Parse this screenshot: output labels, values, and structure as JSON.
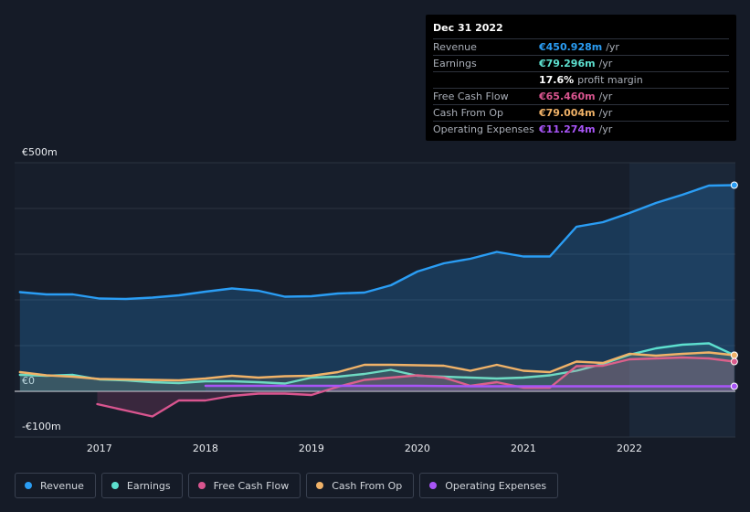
{
  "tooltip": {
    "date": "Dec 31 2022",
    "rows": [
      {
        "label": "Revenue",
        "value": "€450.928m",
        "unit": "/yr",
        "color": "#2a9df4"
      },
      {
        "label": "Earnings",
        "value": "€79.296m",
        "unit": "/yr",
        "color": "#5de0cf"
      },
      {
        "label": "",
        "value": "17.6%",
        "unit": "profit margin",
        "color": "#ffffff"
      },
      {
        "label": "Free Cash Flow",
        "value": "€65.460m",
        "unit": "/yr",
        "color": "#d9558f"
      },
      {
        "label": "Cash From Op",
        "value": "€79.004m",
        "unit": "/yr",
        "color": "#f0b268"
      },
      {
        "label": "Operating Expenses",
        "value": "€11.274m",
        "unit": "/yr",
        "color": "#a855f7"
      }
    ]
  },
  "chart_data": {
    "type": "area",
    "title": "",
    "xlabel": "",
    "ylabel": "",
    "ylim": [
      -100,
      500
    ],
    "y_ticks": [
      {
        "value": 500,
        "label": "€500m"
      },
      {
        "value": 0,
        "label": "€0"
      },
      {
        "value": -100,
        "label": "-€100m"
      }
    ],
    "x_ticks": [
      {
        "value": 2017,
        "label": "2017"
      },
      {
        "value": 2018,
        "label": "2018"
      },
      {
        "value": 2019,
        "label": "2019"
      },
      {
        "value": 2020,
        "label": "2020"
      },
      {
        "value": 2021,
        "label": "2021"
      },
      {
        "value": 2022,
        "label": "2022"
      }
    ],
    "xlim": [
      2016.2,
      2023.0
    ],
    "highlight_from": 2022.0,
    "series": [
      {
        "name": "Revenue",
        "color": "#2a9df4",
        "points": [
          [
            2016.25,
            217
          ],
          [
            2016.5,
            212
          ],
          [
            2016.75,
            212
          ],
          [
            2017.0,
            203
          ],
          [
            2017.25,
            202
          ],
          [
            2017.5,
            205
          ],
          [
            2017.75,
            210
          ],
          [
            2018.0,
            218
          ],
          [
            2018.25,
            225
          ],
          [
            2018.5,
            220
          ],
          [
            2018.75,
            207
          ],
          [
            2019.0,
            208
          ],
          [
            2019.25,
            214
          ],
          [
            2019.5,
            216
          ],
          [
            2019.75,
            232
          ],
          [
            2020.0,
            262
          ],
          [
            2020.25,
            280
          ],
          [
            2020.5,
            290
          ],
          [
            2020.75,
            305
          ],
          [
            2021.0,
            295
          ],
          [
            2021.25,
            295
          ],
          [
            2021.5,
            360
          ],
          [
            2021.75,
            370
          ],
          [
            2022.0,
            390
          ],
          [
            2022.25,
            412
          ],
          [
            2022.5,
            430
          ],
          [
            2022.75,
            450
          ],
          [
            2022.99,
            451
          ]
        ]
      },
      {
        "name": "Earnings",
        "color": "#5de0cf",
        "points": [
          [
            2016.25,
            36
          ],
          [
            2016.5,
            34
          ],
          [
            2016.75,
            36
          ],
          [
            2017.0,
            26
          ],
          [
            2017.25,
            24
          ],
          [
            2017.5,
            20
          ],
          [
            2017.75,
            18
          ],
          [
            2018.0,
            22
          ],
          [
            2018.25,
            22
          ],
          [
            2018.5,
            20
          ],
          [
            2018.75,
            17
          ],
          [
            2019.0,
            30
          ],
          [
            2019.25,
            32
          ],
          [
            2019.5,
            38
          ],
          [
            2019.75,
            47
          ],
          [
            2020.0,
            34
          ],
          [
            2020.25,
            32
          ],
          [
            2020.5,
            30
          ],
          [
            2020.75,
            28
          ],
          [
            2021.0,
            30
          ],
          [
            2021.25,
            35
          ],
          [
            2021.5,
            45
          ],
          [
            2021.75,
            60
          ],
          [
            2022.0,
            80
          ],
          [
            2022.25,
            94
          ],
          [
            2022.5,
            102
          ],
          [
            2022.75,
            105
          ],
          [
            2022.99,
            79
          ]
        ]
      },
      {
        "name": "Free Cash Flow",
        "color": "#d9558f",
        "points": [
          [
            2016.98,
            -28
          ],
          [
            2017.25,
            -42
          ],
          [
            2017.5,
            -55
          ],
          [
            2017.75,
            -20
          ],
          [
            2018.0,
            -20
          ],
          [
            2018.25,
            -10
          ],
          [
            2018.5,
            -5
          ],
          [
            2018.75,
            -5
          ],
          [
            2019.0,
            -8
          ],
          [
            2019.25,
            10
          ],
          [
            2019.5,
            25
          ],
          [
            2019.75,
            30
          ],
          [
            2020.0,
            35
          ],
          [
            2020.25,
            30
          ],
          [
            2020.5,
            12
          ],
          [
            2020.75,
            20
          ],
          [
            2021.0,
            8
          ],
          [
            2021.25,
            8
          ],
          [
            2021.5,
            55
          ],
          [
            2021.75,
            56
          ],
          [
            2022.0,
            70
          ],
          [
            2022.25,
            72
          ],
          [
            2022.5,
            74
          ],
          [
            2022.75,
            72
          ],
          [
            2022.99,
            65
          ]
        ]
      },
      {
        "name": "Cash From Op",
        "color": "#f0b268",
        "points": [
          [
            2016.25,
            42
          ],
          [
            2016.5,
            35
          ],
          [
            2016.75,
            32
          ],
          [
            2017.0,
            27
          ],
          [
            2017.25,
            26
          ],
          [
            2017.5,
            25
          ],
          [
            2017.75,
            24
          ],
          [
            2018.0,
            28
          ],
          [
            2018.25,
            34
          ],
          [
            2018.5,
            30
          ],
          [
            2018.75,
            33
          ],
          [
            2019.0,
            34
          ],
          [
            2019.25,
            42
          ],
          [
            2019.5,
            58
          ],
          [
            2019.75,
            58
          ],
          [
            2020.0,
            57
          ],
          [
            2020.25,
            56
          ],
          [
            2020.5,
            45
          ],
          [
            2020.75,
            58
          ],
          [
            2021.0,
            45
          ],
          [
            2021.25,
            42
          ],
          [
            2021.5,
            65
          ],
          [
            2021.75,
            62
          ],
          [
            2022.0,
            82
          ],
          [
            2022.25,
            78
          ],
          [
            2022.5,
            82
          ],
          [
            2022.75,
            85
          ],
          [
            2022.99,
            79
          ]
        ]
      },
      {
        "name": "Operating Expenses",
        "color": "#a855f7",
        "points": [
          [
            2018.0,
            12
          ],
          [
            2018.5,
            12
          ],
          [
            2019.0,
            12
          ],
          [
            2019.5,
            12
          ],
          [
            2020.0,
            12
          ],
          [
            2020.5,
            11
          ],
          [
            2021.0,
            11
          ],
          [
            2021.5,
            11
          ],
          [
            2022.0,
            11
          ],
          [
            2022.5,
            11
          ],
          [
            2022.99,
            11
          ]
        ]
      }
    ]
  }
}
